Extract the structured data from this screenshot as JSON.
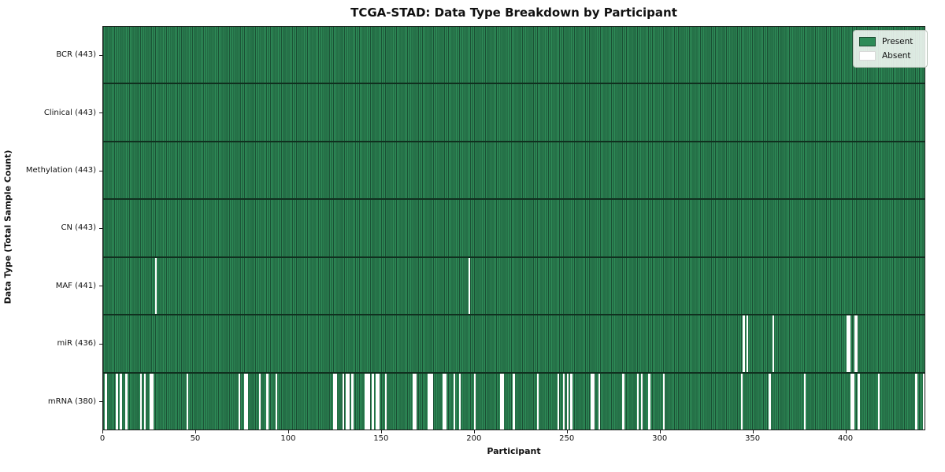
{
  "title": "TCGA-STAD: Data Type Breakdown by Participant",
  "x_axis": {
    "label": "Participant"
  },
  "y_axis": {
    "label": "Data Type (Total Sample Count)"
  },
  "legend": [
    {
      "label": "Present",
      "color": "#2e8b57",
      "edge": "#1c4c31"
    },
    {
      "label": "Absent",
      "color": "#ffffff",
      "edge": "#d9d9d9"
    }
  ],
  "chart_data": {
    "type": "heatmap",
    "title": "TCGA-STAD: Data Type Breakdown by Participant",
    "xlabel": "Participant",
    "ylabel": "Data Type (Total Sample Count)",
    "n_participants": 443,
    "xlim": [
      0,
      443
    ],
    "x_ticks": [
      0,
      50,
      100,
      150,
      200,
      250,
      300,
      350,
      400
    ],
    "grid": false,
    "legend_position": "upper right",
    "colors": {
      "present": "#2e8b57",
      "present_edge": "#1b5135",
      "divider": "#10301f",
      "absent": "#ffffff"
    },
    "rows": [
      {
        "label": "BCR (443)",
        "present_count": 443,
        "absent_count": 0,
        "absent_participants": []
      },
      {
        "label": "Clinical (443)",
        "present_count": 443,
        "absent_count": 0,
        "absent_participants": []
      },
      {
        "label": "Methylation (443)",
        "present_count": 443,
        "absent_count": 0,
        "absent_participants": []
      },
      {
        "label": "CN (443)",
        "present_count": 443,
        "absent_count": 0,
        "absent_participants": []
      },
      {
        "label": "MAF (441)",
        "present_count": 441,
        "absent_count": 2,
        "absent_participants": [
          28,
          197
        ]
      },
      {
        "label": "miR (436)",
        "present_count": 436,
        "absent_count": 7,
        "absent_participants": [
          345,
          347,
          361,
          401,
          402,
          405,
          406
        ]
      },
      {
        "label": "mRNA (380)",
        "present_count": 380,
        "absent_count": 63,
        "absent_participants": [
          1,
          7,
          9,
          12,
          20,
          22,
          25,
          26,
          45,
          73,
          76,
          77,
          84,
          88,
          93,
          124,
          125,
          129,
          131,
          132,
          134,
          141,
          142,
          143,
          145,
          147,
          148,
          152,
          167,
          168,
          175,
          176,
          177,
          183,
          184,
          189,
          192,
          200,
          214,
          215,
          221,
          234,
          245,
          248,
          250,
          252,
          263,
          264,
          267,
          280,
          288,
          290,
          294,
          302,
          344,
          359,
          378,
          403,
          404,
          407,
          418,
          438,
          442
        ]
      }
    ]
  }
}
